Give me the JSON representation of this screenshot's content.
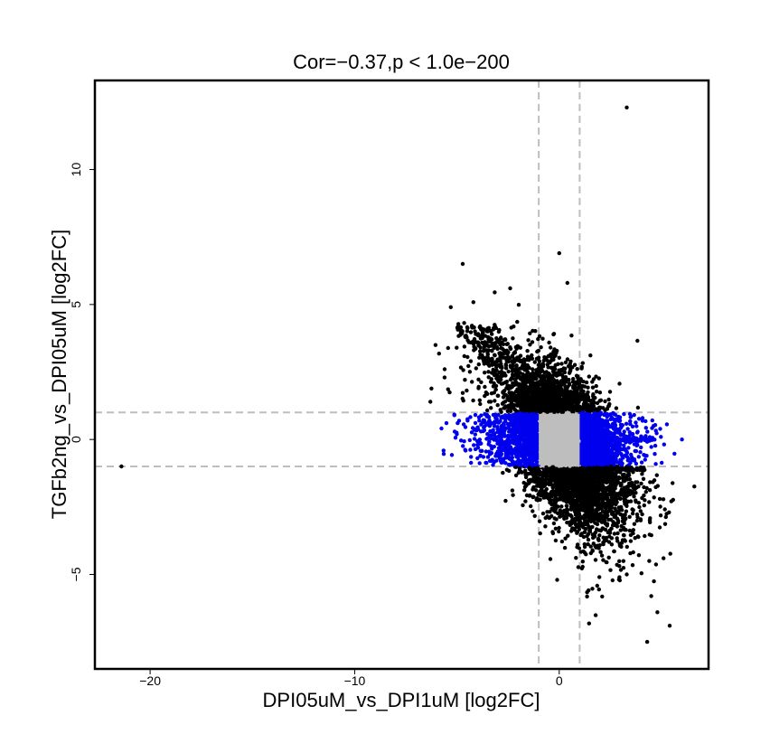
{
  "chart_data": {
    "type": "scatter",
    "title": "Cor=−0.37,p < 1.0e−200",
    "xlabel": "DPI05uM_vs_DPI1uM [log2FC]",
    "ylabel": "TGFb2ng_vs_DPI05uM [log2FC]",
    "xlim": [
      -22.7,
      7.3
    ],
    "ylim": [
      -8.5,
      13.3
    ],
    "x_ticks": [
      -20,
      -10,
      0
    ],
    "x_tick_labels": [
      "−20",
      "−10",
      "0"
    ],
    "y_ticks": [
      -5,
      0,
      5,
      10
    ],
    "y_tick_labels": [
      "−5",
      "0",
      "5",
      "10"
    ],
    "thresholds": {
      "x": [
        -1,
        1
      ],
      "y": [
        -1,
        1
      ]
    },
    "grid": false,
    "legend": "none",
    "colors": {
      "significant": "#000000",
      "x_only": "#0000ee",
      "not_significant": "#bebebe",
      "threshold_line": "#bebebe"
    },
    "outlier_points": [
      {
        "x": 3.3,
        "y": 12.3
      },
      {
        "x": 0.0,
        "y": 6.9
      },
      {
        "x": -2.4,
        "y": 5.6
      },
      {
        "x": 0.4,
        "y": 5.8
      },
      {
        "x": -5.3,
        "y": 4.9
      },
      {
        "x": -5.6,
        "y": 2.6
      },
      {
        "x": -6.3,
        "y": 1.4
      },
      {
        "x": -21.4,
        "y": -1.0
      },
      {
        "x": 4.3,
        "y": -7.5
      },
      {
        "x": 5.4,
        "y": -6.9
      },
      {
        "x": 4.8,
        "y": -6.4
      },
      {
        "x": 4.5,
        "y": -5.8
      },
      {
        "x": 5.1,
        "y": -4.4
      },
      {
        "x": 4.4,
        "y": -4.5
      },
      {
        "x": 6.0,
        "y": 0.0
      },
      {
        "x": -0.1,
        "y": -5.2
      },
      {
        "x": 3.3,
        "y": -5.0
      }
    ]
  }
}
